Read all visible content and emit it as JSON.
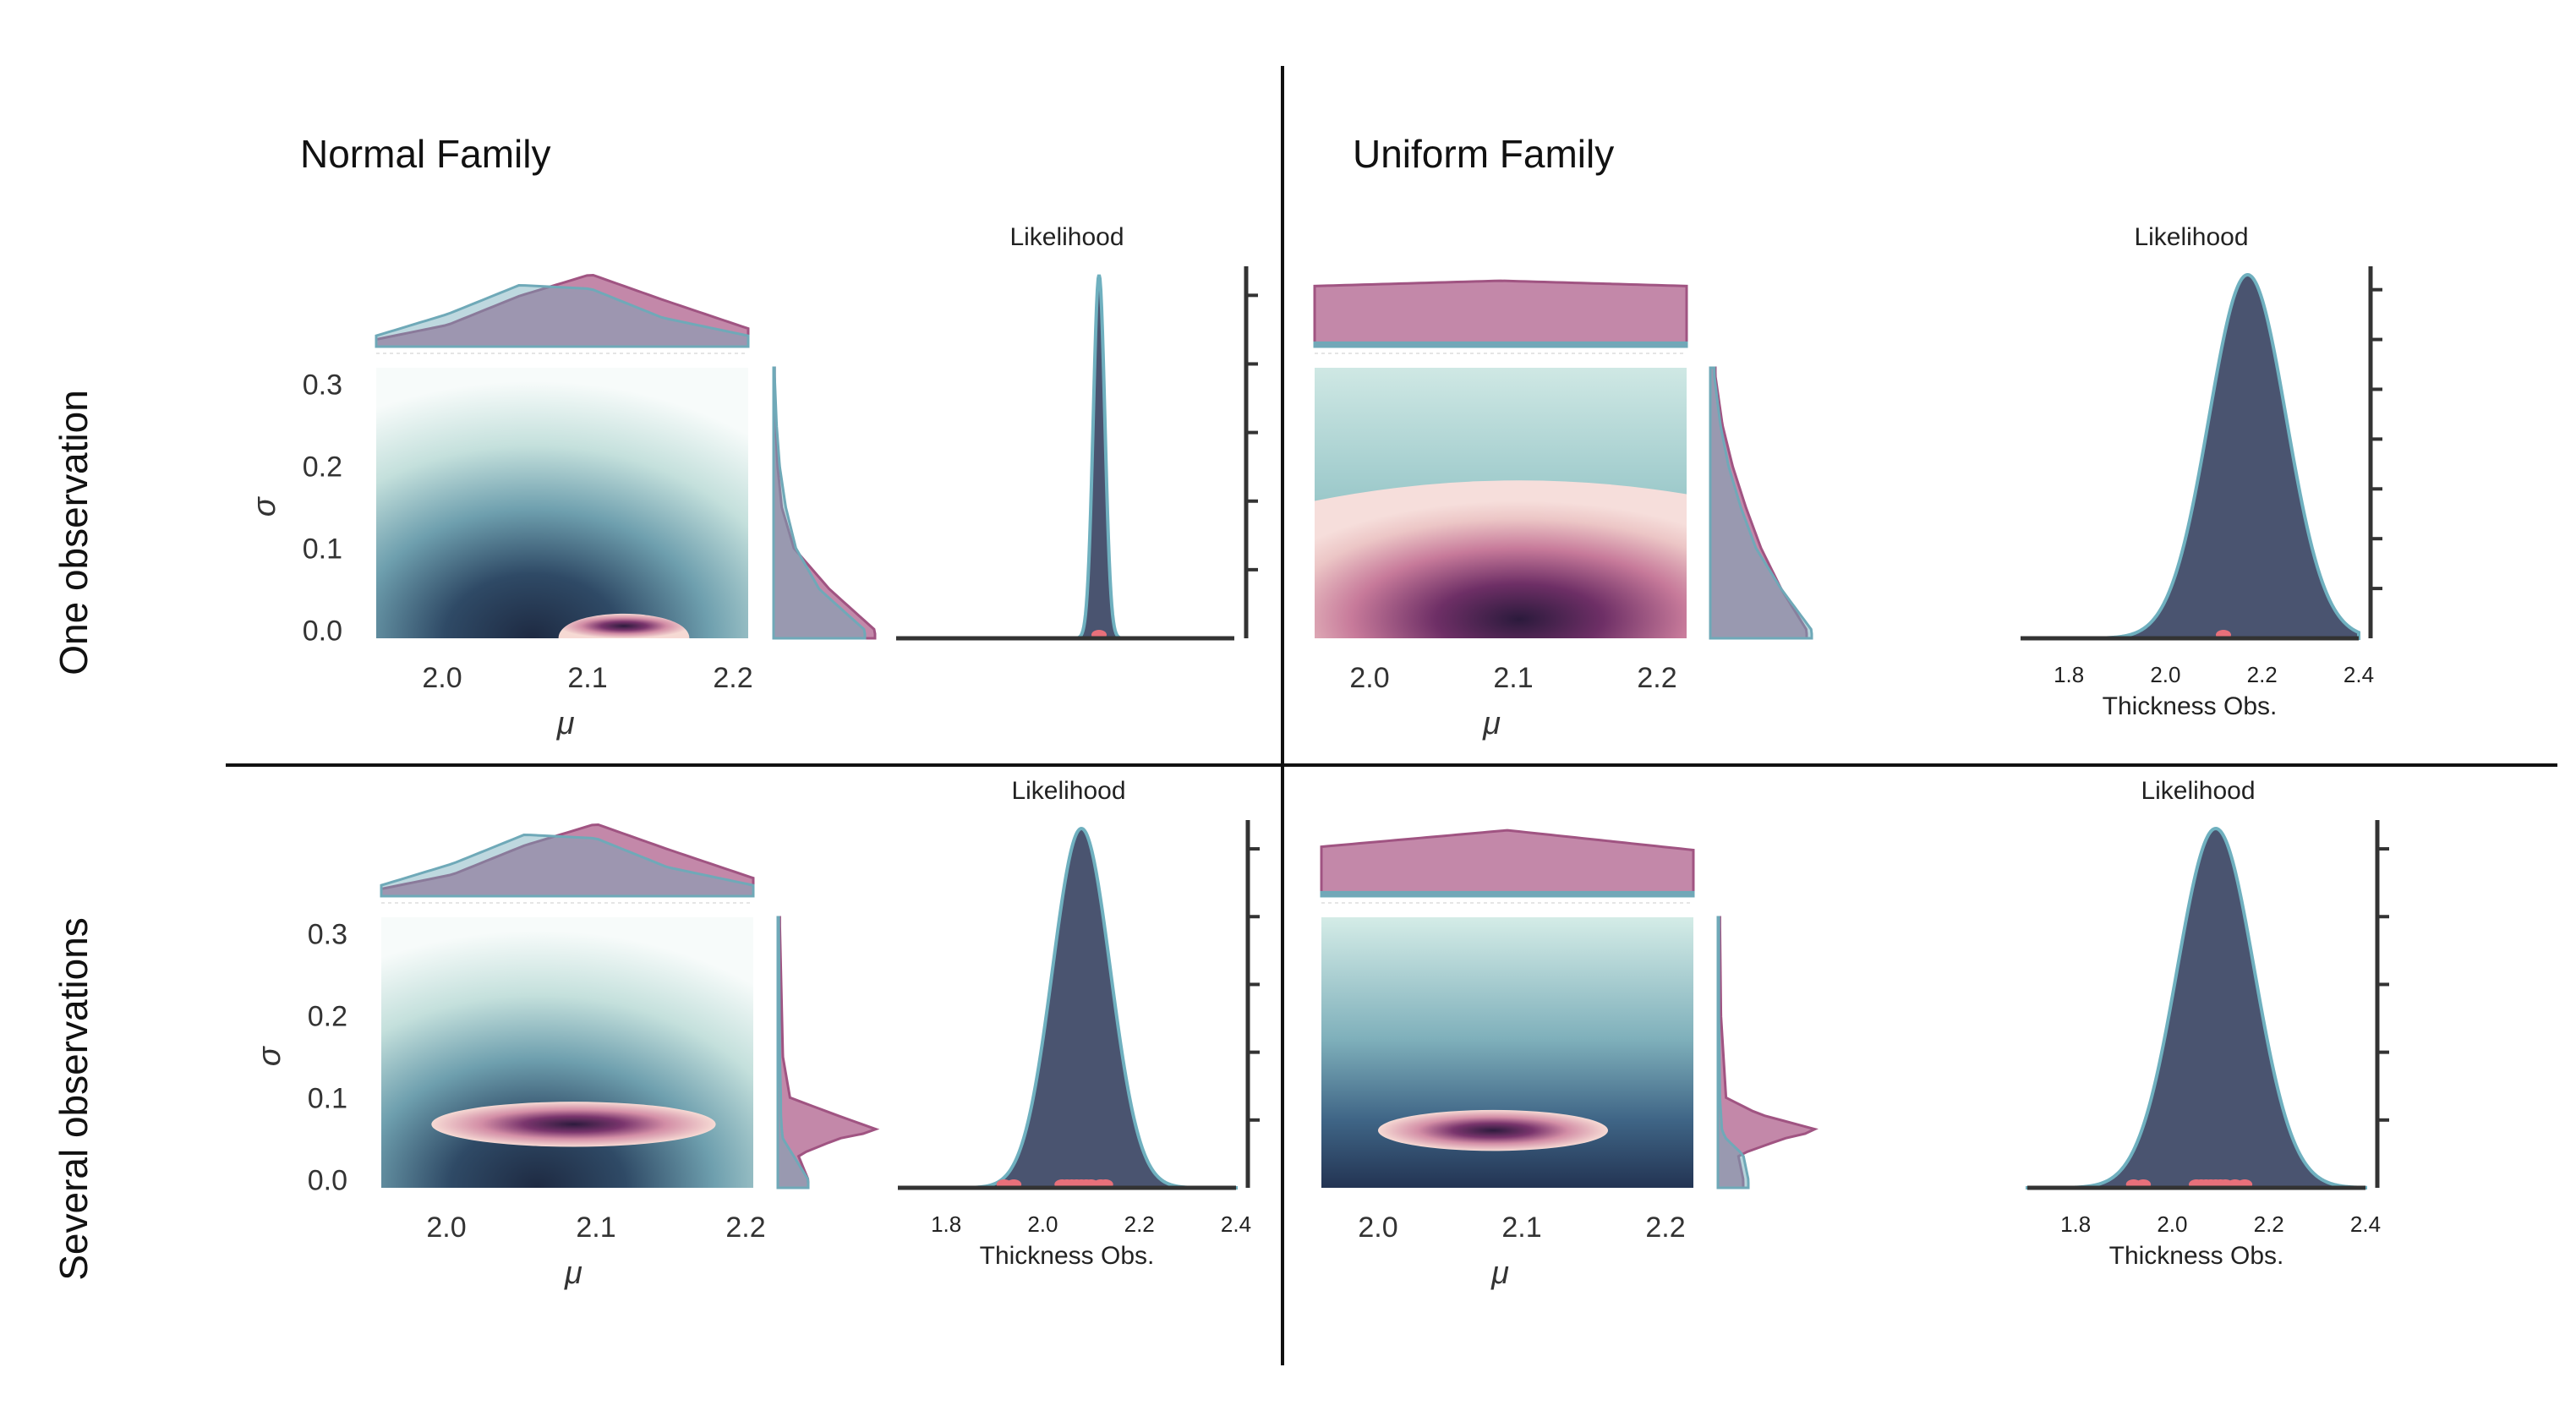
{
  "figure": {
    "column_titles": [
      "Normal Family",
      "Uniform Family"
    ],
    "row_titles": [
      "One observation",
      "Several observations"
    ]
  },
  "colors": {
    "prior": "#b46a93",
    "posterior": "#6fa9b8",
    "likelihood_fill": "#4a5470",
    "likelihood_line": "#6fb0bf",
    "observation": "#e8707a",
    "posterior_peak": "#2d1b3d",
    "posterior_mid": "#8a3f73",
    "posterior_outer": "#f3d2cf",
    "prior_field": "#2f4662",
    "prior_field_light": "#d7ece8",
    "axis": "#333333"
  },
  "chart_data": [
    {
      "id": "normal-one-joint",
      "type": "heatmap",
      "panel": "Normal Family / One observation",
      "xlabel": "μ",
      "ylabel": "σ",
      "xlim": [
        1.95,
        2.21
      ],
      "ylim": [
        -0.01,
        0.32
      ],
      "xticks": [
        "2.0",
        "2.1",
        "2.2"
      ],
      "yticks": [
        "0.0",
        "0.1",
        "0.2",
        "0.3"
      ],
      "prior_field": {
        "center_mu": 2.07,
        "center_sigma": 0.0,
        "spread_mu": 0.1,
        "spread_sigma": 0.13
      },
      "posterior_region": {
        "mu_min": 2.08,
        "mu_max": 2.17,
        "sigma_min": -0.005,
        "sigma_max": 0.03,
        "peak_mu": 2.12,
        "peak_sigma": 0.0
      },
      "marginal_mu": {
        "x": [
          1.95,
          2.0,
          2.05,
          2.1,
          2.15,
          2.21
        ],
        "prior": [
          0.1,
          0.3,
          0.7,
          1.0,
          0.65,
          0.25
        ],
        "posterior": [
          0.15,
          0.45,
          0.85,
          0.8,
          0.4,
          0.15
        ]
      },
      "marginal_sigma": {
        "y": [
          0.0,
          0.05,
          0.1,
          0.15,
          0.2,
          0.25,
          0.31
        ],
        "prior": [
          1.0,
          0.55,
          0.2,
          0.08,
          0.04,
          0.02,
          0.01
        ],
        "posterior": [
          0.9,
          0.45,
          0.22,
          0.12,
          0.06,
          0.03,
          0.01
        ]
      }
    },
    {
      "id": "normal-one-likelihood",
      "type": "area",
      "panel": "Normal Family / One observation",
      "title": "Likelihood",
      "xlabel": "",
      "xlim": [
        1.7,
        2.4
      ],
      "xticks": [],
      "mean": 2.12,
      "sd": 0.012,
      "observations": [
        2.12
      ]
    },
    {
      "id": "uniform-one-joint",
      "type": "heatmap",
      "panel": "Uniform Family / One observation",
      "xlabel": "μ",
      "ylabel": "",
      "xlim": [
        1.95,
        2.21
      ],
      "ylim": [
        -0.01,
        0.32
      ],
      "xticks": [
        "2.0",
        "2.1",
        "2.2"
      ],
      "yticks": [],
      "band_boundary_sigma": 0.17,
      "posterior_region": {
        "peak_mu": 2.1,
        "peak_sigma": 0.02
      },
      "marginal_mu": {
        "x": [
          1.95,
          2.08,
          2.21
        ],
        "prior": [
          0.92,
          1.0,
          0.92
        ],
        "posterior": [
          0.06,
          0.06,
          0.06
        ]
      },
      "marginal_sigma": {
        "y": [
          0.0,
          0.05,
          0.1,
          0.15,
          0.2,
          0.25,
          0.31
        ],
        "prior": [
          0.95,
          0.7,
          0.5,
          0.35,
          0.22,
          0.12,
          0.05
        ],
        "posterior": [
          1.0,
          0.7,
          0.45,
          0.3,
          0.18,
          0.1,
          0.04
        ]
      }
    },
    {
      "id": "uniform-one-likelihood",
      "type": "area",
      "panel": "Uniform Family / One observation",
      "title": "Likelihood",
      "xlabel": "Thickness Obs.",
      "xlim": [
        1.7,
        2.4
      ],
      "xticks": [
        "1.8",
        "2.0",
        "2.2",
        "2.4"
      ],
      "mean": 2.17,
      "sd": 0.08,
      "observations": [
        2.12
      ]
    },
    {
      "id": "normal-several-joint",
      "type": "heatmap",
      "panel": "Normal Family / Several observations",
      "xlabel": "μ",
      "ylabel": "σ",
      "xlim": [
        1.95,
        2.21
      ],
      "ylim": [
        -0.01,
        0.32
      ],
      "xticks": [
        "2.0",
        "2.1",
        "2.2"
      ],
      "yticks": [
        "0.0",
        "0.1",
        "0.2",
        "0.3"
      ],
      "prior_field": {
        "center_mu": 2.07,
        "center_sigma": 0.0,
        "spread_mu": 0.1,
        "spread_sigma": 0.13
      },
      "posterior_region": {
        "mu_min": 1.99,
        "mu_max": 2.18,
        "sigma_min": 0.04,
        "sigma_max": 0.095,
        "peak_mu": 2.09,
        "peak_sigma": 0.06
      },
      "marginal_mu": {
        "x": [
          1.95,
          2.0,
          2.05,
          2.1,
          2.15,
          2.21
        ],
        "prior": [
          0.1,
          0.3,
          0.7,
          1.0,
          0.65,
          0.25
        ],
        "posterior": [
          0.15,
          0.45,
          0.85,
          0.8,
          0.4,
          0.15
        ]
      },
      "marginal_sigma": {
        "y": [
          0.0,
          0.03,
          0.05,
          0.06,
          0.08,
          0.1,
          0.15,
          0.31
        ],
        "prior": [
          0.3,
          0.2,
          0.6,
          1.0,
          0.55,
          0.12,
          0.05,
          0.02
        ],
        "posterior": [
          0.3,
          0.15,
          0.05,
          0.04,
          0.03,
          0.03,
          0.02,
          0.01
        ]
      }
    },
    {
      "id": "normal-several-likelihood",
      "type": "area",
      "panel": "Normal Family / Several observations",
      "title": "Likelihood",
      "xlabel": "Thickness Obs.",
      "xlim": [
        1.7,
        2.4
      ],
      "xticks": [
        "1.8",
        "2.0",
        "2.2",
        "2.4"
      ],
      "mean": 2.08,
      "sd": 0.06,
      "observations": [
        1.92,
        1.94,
        2.04,
        2.05,
        2.06,
        2.07,
        2.08,
        2.09,
        2.1,
        2.12,
        2.13
      ]
    },
    {
      "id": "uniform-several-joint",
      "type": "heatmap",
      "panel": "Uniform Family / Several observations",
      "xlabel": "μ",
      "ylabel": "",
      "xlim": [
        1.95,
        2.21
      ],
      "ylim": [
        -0.01,
        0.32
      ],
      "xticks": [
        "2.0",
        "2.1",
        "2.2"
      ],
      "yticks": [],
      "posterior_region": {
        "mu_min": 2.0,
        "mu_max": 2.16,
        "sigma_min": 0.035,
        "sigma_max": 0.085,
        "peak_mu": 2.09,
        "peak_sigma": 0.055
      },
      "marginal_mu": {
        "x": [
          1.95,
          2.08,
          2.21
        ],
        "prior": [
          0.75,
          1.0,
          0.7
        ],
        "posterior": [
          0.06,
          0.06,
          0.06
        ]
      },
      "marginal_sigma": {
        "y": [
          0.0,
          0.03,
          0.05,
          0.06,
          0.08,
          0.1,
          0.2,
          0.31
        ],
        "prior": [
          0.25,
          0.2,
          0.65,
          1.0,
          0.4,
          0.08,
          0.03,
          0.02
        ],
        "posterior": [
          0.3,
          0.25,
          0.08,
          0.04,
          0.03,
          0.02,
          0.01,
          0.01
        ]
      }
    },
    {
      "id": "uniform-several-likelihood",
      "type": "area",
      "panel": "Uniform Family / Several observations",
      "title": "Likelihood",
      "xlabel": "Thickness Obs.",
      "xlim": [
        1.7,
        2.4
      ],
      "xticks": [
        "1.8",
        "2.0",
        "2.2",
        "2.4"
      ],
      "mean": 2.09,
      "sd": 0.08,
      "observations": [
        1.92,
        1.94,
        2.05,
        2.06,
        2.07,
        2.08,
        2.09,
        2.1,
        2.11,
        2.13,
        2.15
      ]
    }
  ]
}
